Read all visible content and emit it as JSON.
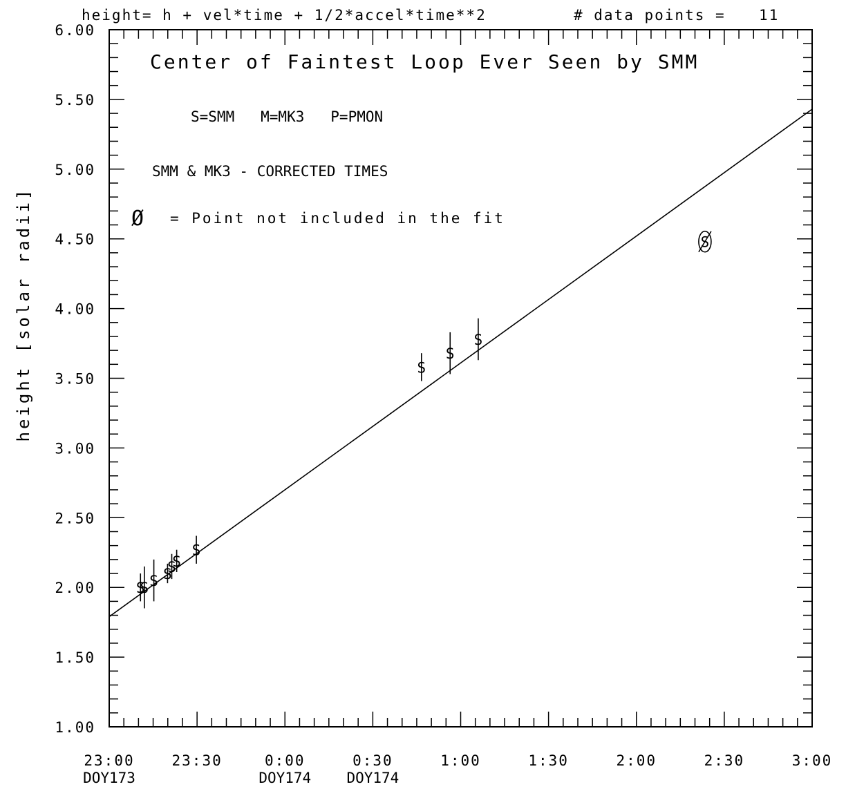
{
  "header": {
    "formula": "height= h + vel*time + 1/2*accel*time**2",
    "points_label": "# data points =",
    "points_count": "11"
  },
  "legend": {
    "symbols": "S=SMM   M=MK3   P=PMON",
    "note": "SMM & MK3 - CORRECTED TIMES",
    "excluded_symbol": "Ø",
    "excluded_text": "= Point not included in the fit"
  },
  "chart_data": {
    "type": "scatter",
    "title": "Center of Faintest Loop Ever Seen by SMM",
    "ylabel": "height [solar radii]",
    "xlabel": "",
    "x_unit": "hours from 23:00 DOY173",
    "xlim": [
      0,
      4
    ],
    "ylim": [
      1.0,
      6.0
    ],
    "grid": false,
    "x_ticks": [
      {
        "x": 0.0,
        "label": "23:00",
        "sublabel": "DOY173"
      },
      {
        "x": 0.5,
        "label": "23:30",
        "sublabel": ""
      },
      {
        "x": 1.0,
        "label": "0:00",
        "sublabel": "DOY174"
      },
      {
        "x": 1.5,
        "label": "0:30",
        "sublabel": "DOY174"
      },
      {
        "x": 2.0,
        "label": "1:00",
        "sublabel": ""
      },
      {
        "x": 2.5,
        "label": "1:30",
        "sublabel": ""
      },
      {
        "x": 3.0,
        "label": "2:00",
        "sublabel": ""
      },
      {
        "x": 3.5,
        "label": "2:30",
        "sublabel": ""
      },
      {
        "x": 4.0,
        "label": "3:00",
        "sublabel": ""
      }
    ],
    "y_ticks": [
      {
        "y": 1.0,
        "label": "1.00"
      },
      {
        "y": 1.5,
        "label": "1.50"
      },
      {
        "y": 2.0,
        "label": "2.00"
      },
      {
        "y": 2.5,
        "label": "2.50"
      },
      {
        "y": 3.0,
        "label": "3.00"
      },
      {
        "y": 3.5,
        "label": "3.50"
      },
      {
        "y": 4.0,
        "label": "4.00"
      },
      {
        "y": 4.5,
        "label": "4.50"
      },
      {
        "y": 5.0,
        "label": "5.00"
      },
      {
        "y": 5.5,
        "label": "5.50"
      },
      {
        "y": 6.0,
        "label": "6.00"
      }
    ],
    "points": [
      {
        "x": 0.178,
        "y": 2.0,
        "err": 0.1,
        "marker": "S",
        "excluded": false
      },
      {
        "x": 0.2,
        "y": 2.0,
        "err": 0.15,
        "marker": "S",
        "excluded": false
      },
      {
        "x": 0.254,
        "y": 2.05,
        "err": 0.15,
        "marker": "S",
        "excluded": false
      },
      {
        "x": 0.332,
        "y": 2.1,
        "err": 0.07,
        "marker": "S",
        "excluded": false
      },
      {
        "x": 0.356,
        "y": 2.15,
        "err": 0.09,
        "marker": "S",
        "excluded": false
      },
      {
        "x": 0.384,
        "y": 2.19,
        "err": 0.08,
        "marker": "S",
        "excluded": false
      },
      {
        "x": 0.496,
        "y": 2.27,
        "err": 0.1,
        "marker": "S",
        "excluded": false
      },
      {
        "x": 1.777,
        "y": 3.58,
        "err": 0.1,
        "marker": "S",
        "excluded": false
      },
      {
        "x": 1.94,
        "y": 3.68,
        "err": 0.15,
        "marker": "S",
        "excluded": false
      },
      {
        "x": 2.1,
        "y": 3.78,
        "err": 0.15,
        "marker": "S",
        "excluded": false
      },
      {
        "x": 3.39,
        "y": 4.48,
        "err": 0.0,
        "marker": "S",
        "excluded": true
      }
    ],
    "fit_line": {
      "x": [
        0.0,
        4.0
      ],
      "y": [
        1.79,
        5.43
      ]
    }
  }
}
